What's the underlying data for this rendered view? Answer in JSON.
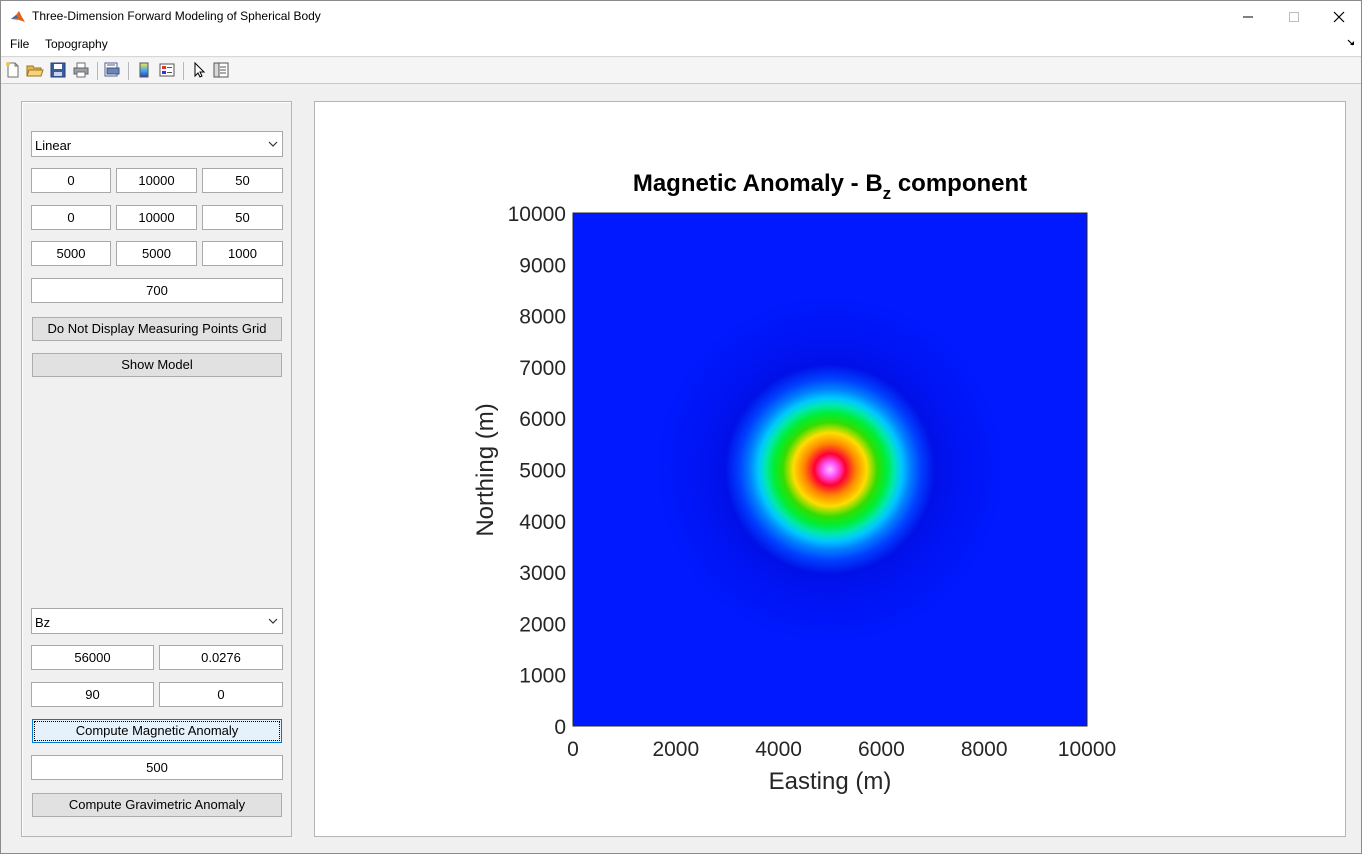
{
  "window": {
    "title": "Three-Dimension Forward Modeling of Spherical Body",
    "icon": "matlab-icon"
  },
  "menu": {
    "items": [
      "File",
      "Topography"
    ]
  },
  "toolbar": {
    "icons": [
      "new-file-icon",
      "open-folder-icon",
      "save-icon",
      "print-icon",
      "print-preview-icon",
      "colorbar-icon",
      "legend-icon",
      "pointer-icon",
      "property-inspector-icon"
    ]
  },
  "panel": {
    "scale_select": "Linear",
    "x_grid": [
      "0",
      "10000",
      "50"
    ],
    "y_grid": [
      "0",
      "10000",
      "50"
    ],
    "sphere_center": [
      "5000",
      "5000",
      "1000"
    ],
    "radius": "700",
    "grid_toggle_button": "Do Not Display Measuring Points Grid",
    "show_model_button": "Show Model",
    "component_select": "Bz",
    "field_params": [
      "56000",
      "0.0276"
    ],
    "angles": [
      "90",
      "0"
    ],
    "compute_magnetic_button": "Compute Magnetic Anomaly",
    "density": "500",
    "compute_gravimetric_button": "Compute Gravimetric Anomaly"
  },
  "chart_data": {
    "type": "heatmap",
    "title_main": "Magnetic Anomaly - B",
    "title_sub": "z",
    "title_tail": " component",
    "xlabel": "Easting (m)",
    "ylabel": "Northing (m)",
    "xlim": [
      0,
      10000
    ],
    "ylim": [
      0,
      10000
    ],
    "xticks": [
      0,
      2000,
      4000,
      6000,
      8000,
      10000
    ],
    "yticks": [
      0,
      1000,
      2000,
      3000,
      4000,
      5000,
      6000,
      7000,
      8000,
      9000,
      10000
    ],
    "anomaly_center": [
      5000,
      5000
    ],
    "colormap": "hsv",
    "background_color": "#0019ff",
    "grid": false
  }
}
